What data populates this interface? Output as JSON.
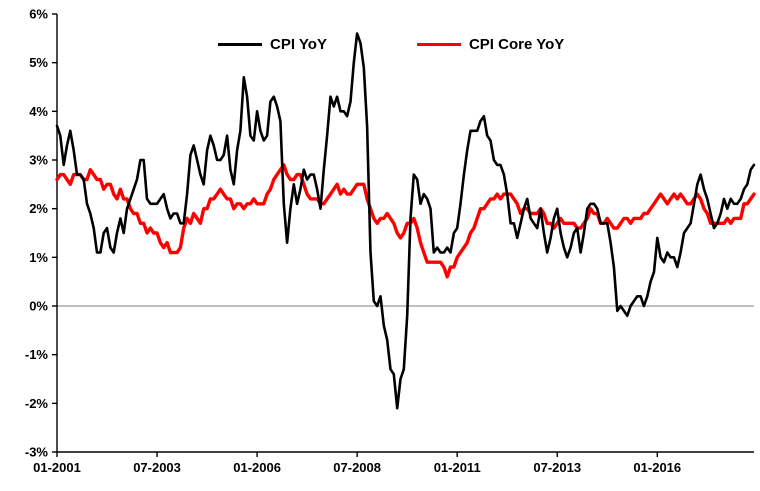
{
  "chart_data": {
    "type": "line",
    "title": "",
    "xlabel": "",
    "ylabel": "",
    "x_unit": "month",
    "x_start_label": "01-2001",
    "x_end_label": "06-2018",
    "x_tick_labels": [
      "01-2001",
      "07-2003",
      "01-2006",
      "07-2008",
      "01-2011",
      "07-2013",
      "01-2016"
    ],
    "x_tick_indices": [
      0,
      30,
      60,
      90,
      120,
      150,
      180
    ],
    "y_tick_labels": [
      "6%",
      "5%",
      "4%",
      "3%",
      "2%",
      "1%",
      "0%",
      "-1%",
      "-2%",
      "-3%"
    ],
    "y_tick_values": [
      6,
      5,
      4,
      3,
      2,
      1,
      0,
      -1,
      -2,
      -3
    ],
    "ylim": [
      -3,
      6
    ],
    "grid": false,
    "zero_line": true,
    "legend_position": "top-center",
    "axis_color": "#000000",
    "zero_line_color": "#7f7f7f",
    "series": [
      {
        "name": "CPI YoY",
        "color": "#000000",
        "line_width": 2.6,
        "values": [
          3.7,
          3.5,
          2.9,
          3.3,
          3.6,
          3.2,
          2.7,
          2.7,
          2.6,
          2.1,
          1.9,
          1.6,
          1.1,
          1.1,
          1.5,
          1.6,
          1.2,
          1.1,
          1.5,
          1.8,
          1.5,
          2.0,
          2.2,
          2.4,
          2.6,
          3.0,
          3.0,
          2.2,
          2.1,
          2.1,
          2.1,
          2.2,
          2.3,
          2.0,
          1.8,
          1.9,
          1.9,
          1.7,
          1.7,
          2.3,
          3.1,
          3.3,
          3.0,
          2.7,
          2.5,
          3.2,
          3.5,
          3.3,
          3.0,
          3.0,
          3.1,
          3.5,
          2.8,
          2.5,
          3.2,
          3.6,
          4.7,
          4.3,
          3.5,
          3.4,
          4.0,
          3.6,
          3.4,
          3.5,
          4.2,
          4.3,
          4.1,
          3.8,
          2.1,
          1.3,
          2.0,
          2.5,
          2.1,
          2.4,
          2.8,
          2.6,
          2.7,
          2.7,
          2.4,
          2.0,
          2.8,
          3.5,
          4.3,
          4.1,
          4.3,
          4.0,
          4.0,
          3.9,
          4.2,
          5.0,
          5.6,
          5.4,
          4.9,
          3.7,
          1.1,
          0.1,
          0.0,
          0.2,
          -0.4,
          -0.7,
          -1.3,
          -1.4,
          -2.1,
          -1.5,
          -1.3,
          -0.2,
          1.8,
          2.7,
          2.6,
          2.1,
          2.3,
          2.2,
          2.0,
          1.1,
          1.2,
          1.1,
          1.1,
          1.2,
          1.1,
          1.5,
          1.6,
          2.1,
          2.7,
          3.2,
          3.6,
          3.6,
          3.6,
          3.8,
          3.9,
          3.5,
          3.4,
          3.0,
          2.9,
          2.9,
          2.7,
          2.3,
          1.7,
          1.7,
          1.4,
          1.7,
          2.0,
          2.2,
          1.8,
          1.7,
          1.6,
          2.0,
          1.5,
          1.1,
          1.4,
          1.8,
          2.0,
          1.5,
          1.2,
          1.0,
          1.2,
          1.5,
          1.6,
          1.1,
          1.5,
          2.0,
          2.1,
          2.1,
          2.0,
          1.7,
          1.7,
          1.7,
          1.3,
          0.8,
          -0.1,
          0.0,
          -0.1,
          -0.2,
          0.0,
          0.1,
          0.2,
          0.2,
          0.0,
          0.2,
          0.5,
          0.7,
          1.4,
          1.0,
          0.9,
          1.1,
          1.0,
          1.0,
          0.8,
          1.1,
          1.5,
          1.6,
          1.7,
          2.1,
          2.5,
          2.7,
          2.4,
          2.2,
          1.9,
          1.6,
          1.7,
          1.9,
          2.2,
          2.0,
          2.2,
          2.1,
          2.1,
          2.2,
          2.4,
          2.5,
          2.8,
          2.9
        ]
      },
      {
        "name": "CPI Core YoY",
        "color": "#FF0000",
        "line_width": 3.4,
        "values": [
          2.6,
          2.7,
          2.7,
          2.6,
          2.5,
          2.7,
          2.7,
          2.7,
          2.6,
          2.6,
          2.8,
          2.7,
          2.6,
          2.6,
          2.4,
          2.5,
          2.5,
          2.3,
          2.2,
          2.4,
          2.2,
          2.2,
          2.0,
          1.9,
          1.9,
          1.7,
          1.7,
          1.5,
          1.6,
          1.5,
          1.5,
          1.3,
          1.2,
          1.3,
          1.1,
          1.1,
          1.1,
          1.2,
          1.6,
          1.8,
          1.7,
          1.9,
          1.8,
          1.7,
          2.0,
          2.0,
          2.2,
          2.2,
          2.3,
          2.4,
          2.3,
          2.2,
          2.2,
          2.0,
          2.1,
          2.1,
          2.0,
          2.1,
          2.1,
          2.2,
          2.1,
          2.1,
          2.1,
          2.3,
          2.4,
          2.6,
          2.7,
          2.8,
          2.9,
          2.7,
          2.6,
          2.6,
          2.7,
          2.7,
          2.5,
          2.3,
          2.2,
          2.2,
          2.2,
          2.1,
          2.1,
          2.2,
          2.3,
          2.4,
          2.5,
          2.3,
          2.4,
          2.3,
          2.3,
          2.4,
          2.5,
          2.5,
          2.5,
          2.2,
          2.0,
          1.8,
          1.7,
          1.8,
          1.8,
          1.9,
          1.8,
          1.7,
          1.5,
          1.4,
          1.5,
          1.7,
          1.7,
          1.8,
          1.6,
          1.3,
          1.1,
          0.9,
          0.9,
          0.9,
          0.9,
          0.9,
          0.8,
          0.6,
          0.8,
          0.8,
          1.0,
          1.1,
          1.2,
          1.3,
          1.5,
          1.6,
          1.8,
          2.0,
          2.0,
          2.1,
          2.2,
          2.2,
          2.3,
          2.2,
          2.3,
          2.3,
          2.3,
          2.2,
          2.1,
          1.9,
          2.0,
          2.0,
          1.9,
          1.9,
          1.9,
          2.0,
          1.9,
          1.7,
          1.7,
          1.6,
          1.7,
          1.8,
          1.7,
          1.7,
          1.7,
          1.7,
          1.6,
          1.6,
          1.7,
          1.8,
          2.0,
          1.9,
          1.9,
          1.7,
          1.7,
          1.8,
          1.7,
          1.6,
          1.6,
          1.7,
          1.8,
          1.8,
          1.7,
          1.8,
          1.8,
          1.8,
          1.9,
          1.9,
          2.0,
          2.1,
          2.2,
          2.3,
          2.2,
          2.1,
          2.2,
          2.3,
          2.2,
          2.3,
          2.2,
          2.1,
          2.1,
          2.2,
          2.3,
          2.2,
          2.0,
          1.9,
          1.7,
          1.7,
          1.7,
          1.7,
          1.7,
          1.8,
          1.7,
          1.8,
          1.8,
          1.8,
          2.1,
          2.1,
          2.2,
          2.3
        ]
      }
    ]
  }
}
